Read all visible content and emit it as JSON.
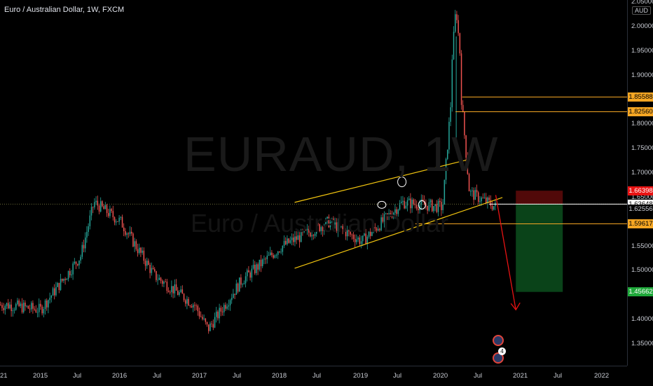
{
  "header": {
    "title": "Euro / Australian Dollar, 1W, FXCM"
  },
  "watermark": {
    "symbol": "EURAUD, 1W",
    "description": "Euro / Australian Dollar"
  },
  "currency_label": "AUD",
  "colors": {
    "bull": "#26a69a",
    "bear": "#ef5350",
    "level": "#f5a623",
    "channel": "#f1c40f",
    "projection": "#e81313",
    "target_zone": "#0b4a1c",
    "stop_zone": "#5a0a0a"
  },
  "chart_data": {
    "type": "candlestick",
    "symbol": "EURAUD",
    "interval": "1W",
    "source": "FXCM",
    "ylim": [
      1.33,
      2.08
    ],
    "price_axis_ticks": [
      "2.05000",
      "2.00000",
      "1.95000",
      "1.90000",
      "1.85000",
      "1.80000",
      "1.75000",
      "1.70000",
      "1.65000",
      "1.55000",
      "1.50000",
      "1.45000",
      "1.40000",
      "1.35000"
    ],
    "time_axis_ticks": [
      "21",
      "2015",
      "Jul",
      "2016",
      "Jul",
      "2017",
      "Jul",
      "2018",
      "Jul",
      "2019",
      "Jul",
      "2020",
      "Jul",
      "2021",
      "Jul",
      "2022"
    ],
    "price_labels": [
      {
        "text": "1.85588",
        "color": "#f5a623",
        "text_color": "#000000"
      },
      {
        "text": "1.82560",
        "color": "#f5a623",
        "text_color": "#000000"
      },
      {
        "text": "1.66398",
        "color": "#e81313",
        "text_color": "#ffffff"
      },
      {
        "text": "1.63648",
        "color": "#ffffff",
        "text_color": "#000000"
      },
      {
        "text": "1.62585",
        "color": "#4caf50",
        "text_color": "#ffffff"
      },
      {
        "text": "1.62556",
        "color": "#000000",
        "text_color": "#c8cbd3"
      },
      {
        "text": "1.59617",
        "color": "#f5a623",
        "text_color": "#000000"
      },
      {
        "text": "1.45662",
        "color": "#1fa83a",
        "text_color": "#ffffff"
      }
    ],
    "horizontal_levels": [
      1.85588,
      1.8256,
      1.59617,
      1.63648
    ],
    "ascending_channel": {
      "upper": {
        "from": [
          "2018-03",
          1.64
        ],
        "to": [
          "2020-05",
          1.728
        ]
      },
      "lower": {
        "from": [
          "2018-03",
          1.505
        ],
        "to": [
          "2020-10",
          1.65
        ]
      }
    },
    "highlighted_pivots": [
      "2019-04",
      "2019-07",
      "2019-10"
    ],
    "projection": {
      "from": [
        "2020-09",
        1.655
      ],
      "to": [
        "2020-12",
        1.42
      ]
    },
    "position": {
      "entry": 1.63648,
      "stop": 1.66398,
      "target": 1.45662
    },
    "key_points": [
      {
        "date": "2014-08",
        "close": 1.43
      },
      {
        "date": "2015-01",
        "close": 1.42
      },
      {
        "date": "2015-07",
        "close": 1.53
      },
      {
        "date": "2015-09",
        "close": 1.64
      },
      {
        "date": "2016-01",
        "close": 1.6
      },
      {
        "date": "2016-06",
        "close": 1.49
      },
      {
        "date": "2016-12",
        "close": 1.43
      },
      {
        "date": "2017-02",
        "close": 1.38
      },
      {
        "date": "2017-07",
        "close": 1.48
      },
      {
        "date": "2018-01",
        "close": 1.55
      },
      {
        "date": "2018-08",
        "close": 1.6
      },
      {
        "date": "2019-01",
        "close": 1.56
      },
      {
        "date": "2019-07",
        "close": 1.64
      },
      {
        "date": "2020-01",
        "close": 1.63
      },
      {
        "date": "2020-03",
        "close": 1.98
      },
      {
        "date": "2020-05",
        "close": 1.66
      },
      {
        "date": "2020-09",
        "close": 1.63
      }
    ]
  }
}
